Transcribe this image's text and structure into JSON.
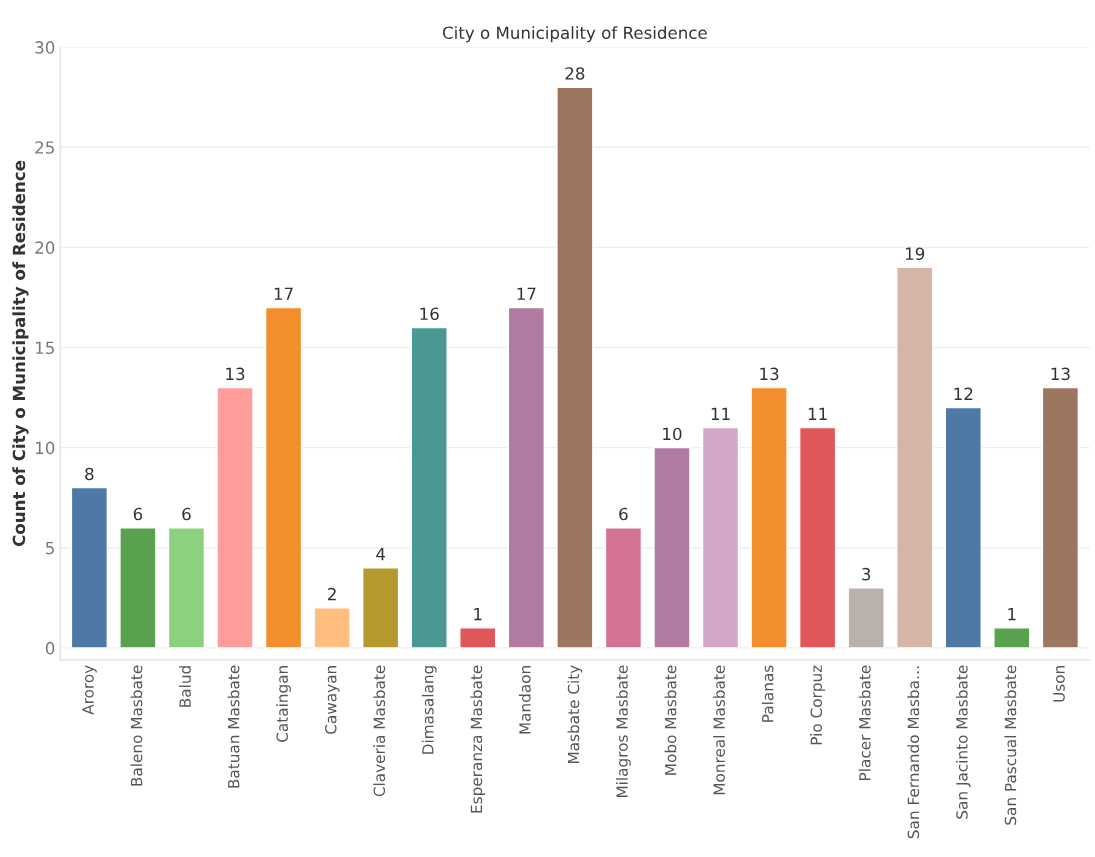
{
  "chart_data": {
    "type": "bar",
    "title": "City o Municipality of Residence",
    "ylabel": "Count of City o Municipality of Residence",
    "categories": [
      "Aroroy",
      "Baleno Masbate",
      "Balud",
      "Batuan Masbate",
      "Cataingan",
      "Cawayan",
      "Claveria Masbate",
      "Dimasalang",
      "Esperanza Masbate",
      "Mandaon",
      "Masbate City",
      "Milagros Masbate",
      "Mobo Masbate",
      "Monreal Masbate",
      "Palanas",
      "Pio Corpuz",
      "Placer Masbate",
      "San Fernando Masba…",
      "San Jacinto Masbate",
      "San Pascual Masbate",
      "Uson"
    ],
    "values": [
      8,
      6,
      6,
      13,
      17,
      2,
      4,
      16,
      1,
      17,
      28,
      6,
      10,
      11,
      13,
      11,
      3,
      19,
      12,
      1,
      13
    ],
    "colors": [
      "#4e79a7",
      "#59a14f",
      "#8cd17d",
      "#ff9d9a",
      "#f28e2b",
      "#ffbe7d",
      "#b6992d",
      "#499894",
      "#e15759",
      "#b07aa1",
      "#9d7660",
      "#d37295",
      "#b07aa1",
      "#d4a6c8",
      "#f28e2b",
      "#e15759",
      "#bab0ac",
      "#d7b5a6",
      "#4e79a7",
      "#59a14f",
      "#9d7660"
    ],
    "ylim": [
      -0.6,
      30
    ],
    "yticks": [
      0,
      5,
      10,
      15,
      20,
      25,
      30
    ],
    "grid": "y",
    "data_labels": true
  }
}
